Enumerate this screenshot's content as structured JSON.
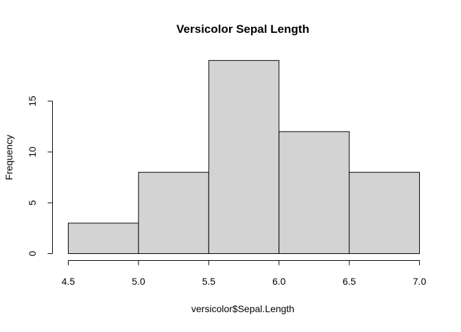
{
  "chart_data": {
    "type": "bar",
    "title": "Versicolor Sepal Length",
    "xlabel": "versicolor$Sepal.Length",
    "ylabel": "Frequency",
    "bins": [
      {
        "start": 4.5,
        "end": 5.0,
        "count": 3
      },
      {
        "start": 5.0,
        "end": 5.5,
        "count": 8
      },
      {
        "start": 5.5,
        "end": 6.0,
        "count": 19
      },
      {
        "start": 6.0,
        "end": 6.5,
        "count": 12
      },
      {
        "start": 6.5,
        "end": 7.0,
        "count": 8
      }
    ],
    "xlim": [
      4.5,
      7.0
    ],
    "ylim": [
      0,
      19
    ],
    "x_ticks": [
      "4.5",
      "5.0",
      "5.5",
      "6.0",
      "6.5",
      "7.0"
    ],
    "y_ticks": [
      "0",
      "5",
      "10",
      "15"
    ],
    "bar_fill": "#d3d3d3",
    "bar_stroke": "#000000",
    "grid": false,
    "legend": "none"
  }
}
